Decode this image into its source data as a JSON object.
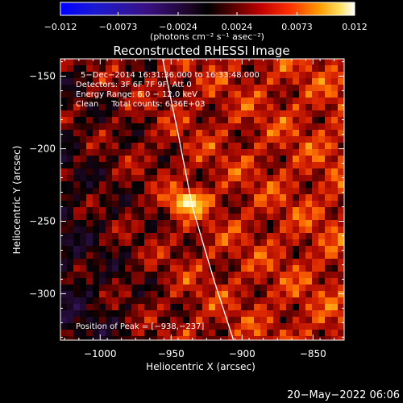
{
  "chart_data": {
    "type": "heatmap",
    "title": "Reconstructed RHESSI Image",
    "xlabel": "Heliocentric X (arcsec)",
    "ylabel": "Heliocentric Y (arcsec)",
    "xlim": [
      -1028,
      -828
    ],
    "ylim": [
      -332,
      -138
    ],
    "x_ticks": [
      -1000,
      -950,
      -900,
      -850
    ],
    "x_tick_labels": [
      "−1000",
      "−950",
      "−900",
      "−850"
    ],
    "y_ticks": [
      -150,
      -200,
      -250,
      -300
    ],
    "y_tick_labels": [
      "−150",
      "−200",
      "−250",
      "−300"
    ],
    "colorbar": {
      "range": [
        -0.012,
        0.012
      ],
      "ticks": [
        -0.012,
        -0.0073,
        -0.0024,
        0.0024,
        0.0073,
        0.012
      ],
      "tick_labels": [
        "−0.012",
        "−0.0073",
        "−0.0024",
        "0.0024",
        "0.0073",
        "0.012"
      ],
      "unit_label": "(photons cm⁻² s⁻¹ asec⁻²)"
    },
    "annotations": [
      "5−Dec−2014 16:31:36.000 to 16:33:48.000",
      "Detectors: 3F 6F 7F 9F, Att 0",
      "Energy Range: 6.0 − 12.0 keV",
      "Clean     Total counts: 6.36E+03"
    ],
    "peak_label": "Position of Peak = [−938,−237]",
    "peak": [
      -938,
      -237
    ],
    "limb_curve": [
      [
        -956,
        -138
      ],
      [
        -945,
        -190
      ],
      [
        -935,
        -240
      ],
      [
        -920,
        -290
      ],
      [
        -906,
        -332
      ]
    ],
    "grid": false
  },
  "footer": {
    "timestamp": "20−May−2022 06:06"
  }
}
